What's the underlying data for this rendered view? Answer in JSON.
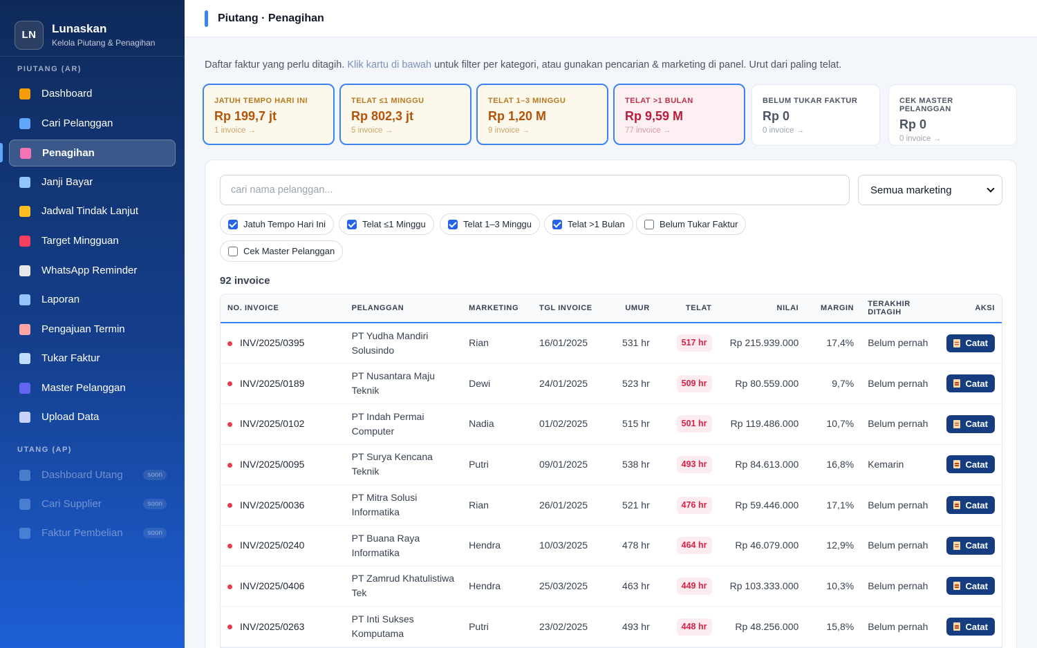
{
  "brand": {
    "logo": "LN",
    "name": "Lunaskan",
    "subtitle": "Kelola Piutang & Penagihan"
  },
  "sidebar": {
    "section_ar": "PIUTANG (AR)",
    "section_ap": "UTANG (AP)",
    "ar_items": [
      {
        "label": "Dashboard",
        "icon": "chart-icon",
        "color": "#f59e0b",
        "active": false
      },
      {
        "label": "Cari Pelanggan",
        "icon": "search-icon",
        "color": "#60a5fa",
        "active": false
      },
      {
        "label": "Penagihan",
        "icon": "phone-icon",
        "color": "#f472b6",
        "active": true
      },
      {
        "label": "Janji Bayar",
        "icon": "calendar-icon",
        "color": "#93c5fd",
        "active": false
      },
      {
        "label": "Jadwal Tindak Lanjut",
        "icon": "bell-icon",
        "color": "#fbbf24",
        "active": false
      },
      {
        "label": "Target Mingguan",
        "icon": "target-icon",
        "color": "#f43f5e",
        "active": false
      },
      {
        "label": "WhatsApp Reminder",
        "icon": "chat-icon",
        "color": "#e5e7eb",
        "active": false
      },
      {
        "label": "Laporan",
        "icon": "trend-icon",
        "color": "#93c5fd",
        "active": false
      },
      {
        "label": "Pengajuan Termin",
        "icon": "document-icon",
        "color": "#fca5a5",
        "active": false
      },
      {
        "label": "Tukar Faktur",
        "icon": "invoice-icon",
        "color": "#bfdbfe",
        "active": false
      },
      {
        "label": "Master Pelanggan",
        "icon": "users-icon",
        "color": "#6366f1",
        "active": false
      },
      {
        "label": "Upload Data",
        "icon": "upload-icon",
        "color": "#c7d2fe",
        "active": false
      }
    ],
    "ap_items": [
      {
        "label": "Dashboard Utang",
        "icon": "chart-icon",
        "badge": "soon"
      },
      {
        "label": "Cari Supplier",
        "icon": "factory-icon",
        "badge": "soon"
      },
      {
        "label": "Faktur Pembelian",
        "icon": "receipt-icon",
        "badge": "soon"
      }
    ]
  },
  "header": {
    "title": "Piutang · Penagihan"
  },
  "intro": {
    "part1": "Daftar faktur yang perlu ditagih. ",
    "highlight": "Klik kartu di bawah",
    "part2": " untuk filter per kategori, atau gunakan pencarian & marketing di panel. Urut dari paling telat."
  },
  "cards": [
    {
      "label": "JATUH TEMPO HARI INI",
      "value": "Rp 199,7 jt",
      "sub": "1 invoice →",
      "variant": "warn"
    },
    {
      "label": "TELAT ≤1 MINGGU",
      "value": "Rp 802,3 jt",
      "sub": "5 invoice →",
      "variant": "warn"
    },
    {
      "label": "TELAT 1–3 MINGGU",
      "value": "Rp 1,20 M",
      "sub": "9 invoice →",
      "variant": "warn"
    },
    {
      "label": "TELAT >1 BULAN",
      "value": "Rp 9,59 M",
      "sub": "77 invoice →",
      "variant": "red"
    },
    {
      "label": "BELUM TUKAR FAKTUR",
      "value": "Rp 0",
      "sub": "0 invoice →",
      "variant": "plain"
    },
    {
      "label": "CEK MASTER PELANGGAN",
      "value": "Rp 0",
      "sub": "0 invoice →",
      "variant": "plain"
    }
  ],
  "search": {
    "placeholder": "cari nama pelanggan...",
    "value": ""
  },
  "marketing_select": {
    "selected": "Semua marketing"
  },
  "filters": [
    {
      "label": "Jatuh Tempo Hari Ini",
      "checked": true
    },
    {
      "label": "Telat ≤1 Minggu",
      "checked": true
    },
    {
      "label": "Telat 1–3 Minggu",
      "checked": true
    },
    {
      "label": "Telat >1 Bulan",
      "checked": true
    },
    {
      "label": "Belum Tukar Faktur",
      "checked": false
    },
    {
      "label": "Cek Master Pelanggan",
      "checked": false
    }
  ],
  "count_label": "92 invoice",
  "table": {
    "columns": [
      "NO. INVOICE",
      "PELANGGAN",
      "MARKETING",
      "TGL INVOICE",
      "UMUR",
      "TELAT",
      "NILAI",
      "MARGIN",
      "TERAKHIR DITAGIH",
      "AKSI"
    ],
    "action_label": "Catat",
    "rows": [
      {
        "invoice": "INV/2025/0395",
        "customer": "PT Yudha Mandiri Solusindo",
        "marketing": "Rian",
        "date": "16/01/2025",
        "age": "531 hr",
        "late": "517 hr",
        "value": "Rp 215.939.000",
        "margin": "17,4%",
        "last": "Belum pernah"
      },
      {
        "invoice": "INV/2025/0189",
        "customer": "PT Nusantara Maju Teknik",
        "marketing": "Dewi",
        "date": "24/01/2025",
        "age": "523 hr",
        "late": "509 hr",
        "value": "Rp 80.559.000",
        "margin": "9,7%",
        "last": "Belum pernah"
      },
      {
        "invoice": "INV/2025/0102",
        "customer": "PT Indah Permai Computer",
        "marketing": "Nadia",
        "date": "01/02/2025",
        "age": "515 hr",
        "late": "501 hr",
        "value": "Rp 119.486.000",
        "margin": "10,7%",
        "last": "Belum pernah"
      },
      {
        "invoice": "INV/2025/0095",
        "customer": "PT Surya Kencana Teknik",
        "marketing": "Putri",
        "date": "09/01/2025",
        "age": "538 hr",
        "late": "493 hr",
        "value": "Rp 84.613.000",
        "margin": "16,8%",
        "last": "Kemarin"
      },
      {
        "invoice": "INV/2025/0036",
        "customer": "PT Mitra Solusi Informatika",
        "marketing": "Rian",
        "date": "26/01/2025",
        "age": "521 hr",
        "late": "476 hr",
        "value": "Rp 59.446.000",
        "margin": "17,1%",
        "last": "Belum pernah"
      },
      {
        "invoice": "INV/2025/0240",
        "customer": "PT Buana Raya Informatika",
        "marketing": "Hendra",
        "date": "10/03/2025",
        "age": "478 hr",
        "late": "464 hr",
        "value": "Rp 46.079.000",
        "margin": "12,9%",
        "last": "Belum pernah"
      },
      {
        "invoice": "INV/2025/0406",
        "customer": "PT Zamrud Khatulistiwa Tek",
        "marketing": "Hendra",
        "date": "25/03/2025",
        "age": "463 hr",
        "late": "449 hr",
        "value": "Rp 103.333.000",
        "margin": "10,3%",
        "last": "Belum pernah"
      },
      {
        "invoice": "INV/2025/0263",
        "customer": "PT Inti Sukses Komputama",
        "marketing": "Putri",
        "date": "23/02/2025",
        "age": "493 hr",
        "late": "448 hr",
        "value": "Rp 48.256.000",
        "margin": "15,8%",
        "last": "Belum pernah"
      }
    ]
  }
}
